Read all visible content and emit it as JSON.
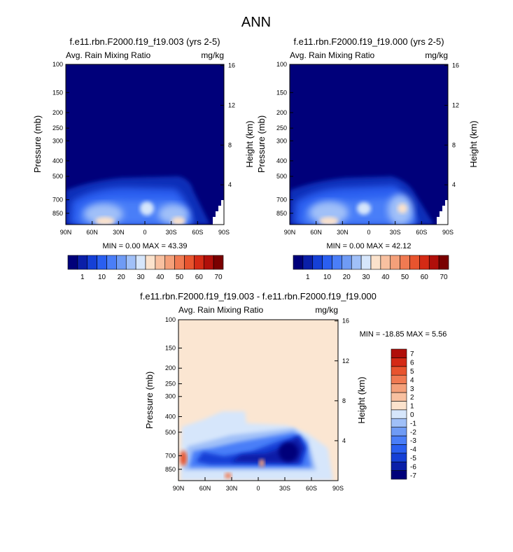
{
  "page_title": "ANN",
  "colors": {
    "background_deep": "#00007a",
    "diff_background": "#fbe6d2",
    "full_scale": [
      "#00007a",
      "#0a1fa8",
      "#1540d6",
      "#2a5ff0",
      "#4a7ef8",
      "#6f9bf5",
      "#a0c0f8",
      "#d6e6fb",
      "#fbe2cc",
      "#f8c0a0",
      "#f4a07a",
      "#f07a52",
      "#e8542e",
      "#d42a15",
      "#b00f0a",
      "#7a0000"
    ],
    "diff_scale": [
      "#00007a",
      "#0a1fa8",
      "#1540d6",
      "#2a5ff0",
      "#4a7ef8",
      "#6f9bf5",
      "#a0c0f8",
      "#d6e6fb",
      "#fbe2cc",
      "#f8c0a0",
      "#f4a07a",
      "#f07a52",
      "#e8542e",
      "#d42a15",
      "#b00f0a"
    ]
  },
  "chart_data": [
    {
      "type": "heatmap",
      "id": "case1",
      "title": "f.e11.rbn.F2000.f19_f19.003 (yrs 2-5)",
      "left_label": "Avg. Rain Mixing Ratio",
      "units_label": "mg/kg",
      "ylabel": "Pressure (mb)",
      "ylabel_right": "Height (km)",
      "x_ticks": [
        "90N",
        "60N",
        "30N",
        "0",
        "30S",
        "60S",
        "90S"
      ],
      "y_ticks": [
        "100",
        "150",
        "200",
        "250",
        "300",
        "400",
        "500",
        "700",
        "850"
      ],
      "y_ticks_right": [
        "16",
        "12",
        "8",
        "4"
      ],
      "stats": "MIN =  0.00  MAX = 43.39",
      "min": 0.0,
      "max": 43.39,
      "colorbar_labels": [
        "1",
        "10",
        "20",
        "30",
        "40",
        "50",
        "60",
        "70"
      ]
    },
    {
      "type": "heatmap",
      "id": "case2",
      "title": "f.e11.rbn.F2000.f19_f19.000 (yrs 2-5)",
      "left_label": "Avg. Rain Mixing Ratio",
      "units_label": "mg/kg",
      "ylabel": "Pressure (mb)",
      "ylabel_right": "Height (km)",
      "x_ticks": [
        "90N",
        "60N",
        "30N",
        "0",
        "30S",
        "60S",
        "90S"
      ],
      "y_ticks": [
        "100",
        "150",
        "200",
        "250",
        "300",
        "400",
        "500",
        "700",
        "850"
      ],
      "y_ticks_right": [
        "16",
        "12",
        "8",
        "4"
      ],
      "stats": "MIN =  0.00  MAX = 42.12",
      "min": 0.0,
      "max": 42.12,
      "colorbar_labels": [
        "1",
        "10",
        "20",
        "30",
        "40",
        "50",
        "60",
        "70"
      ]
    },
    {
      "type": "heatmap",
      "id": "diff",
      "title": "f.e11.rbn.F2000.f19_f19.003 - f.e11.rbn.F2000.f19_f19.000",
      "left_label": "Avg. Rain Mixing Ratio",
      "units_label": "mg/kg",
      "ylabel": "Pressure (mb)",
      "ylabel_right": "Height (km)",
      "x_ticks": [
        "90N",
        "60N",
        "30N",
        "0",
        "30S",
        "60S",
        "90S"
      ],
      "y_ticks": [
        "100",
        "150",
        "200",
        "250",
        "300",
        "400",
        "500",
        "700",
        "850"
      ],
      "y_ticks_right": [
        "16",
        "12",
        "8",
        "4"
      ],
      "stats": "MIN = -18.85  MAX =   5.56",
      "min": -18.85,
      "max": 5.56,
      "colorbar_labels": [
        "7",
        "6",
        "5",
        "4",
        "3",
        "2",
        "1",
        "0",
        "-1",
        "-2",
        "-3",
        "-4",
        "-5",
        "-6",
        "-7"
      ]
    }
  ]
}
